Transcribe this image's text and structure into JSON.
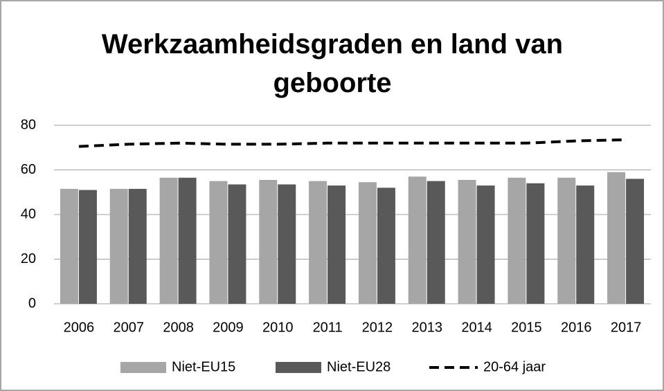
{
  "chart_data": {
    "type": "bar",
    "title": "Werkzaamheidsgraden en land van geboorte",
    "categories": [
      "2006",
      "2007",
      "2008",
      "2009",
      "2010",
      "2011",
      "2012",
      "2013",
      "2014",
      "2015",
      "2016",
      "2017"
    ],
    "series": [
      {
        "name": "Niet-EU15",
        "type": "bar",
        "color": "#a6a6a6",
        "values": [
          51.5,
          51.5,
          56.5,
          55,
          55.5,
          55,
          54.5,
          57,
          55.5,
          56.5,
          56.5,
          59
        ]
      },
      {
        "name": "Niet-EU28",
        "type": "bar",
        "color": "#595959",
        "values": [
          51,
          51.5,
          56.5,
          53.5,
          53.5,
          53,
          52,
          55,
          53,
          54,
          53,
          56
        ]
      },
      {
        "name": "20-64 jaar",
        "type": "line",
        "color": "#000000",
        "dashed": true,
        "values": [
          70.5,
          71.5,
          72,
          71.5,
          71.5,
          72,
          72,
          72,
          72,
          72,
          73,
          73.5
        ]
      }
    ],
    "ylim": [
      0,
      80
    ],
    "yticks": [
      0,
      20,
      40,
      60,
      80
    ],
    "grid": true,
    "legend": "bottom"
  }
}
